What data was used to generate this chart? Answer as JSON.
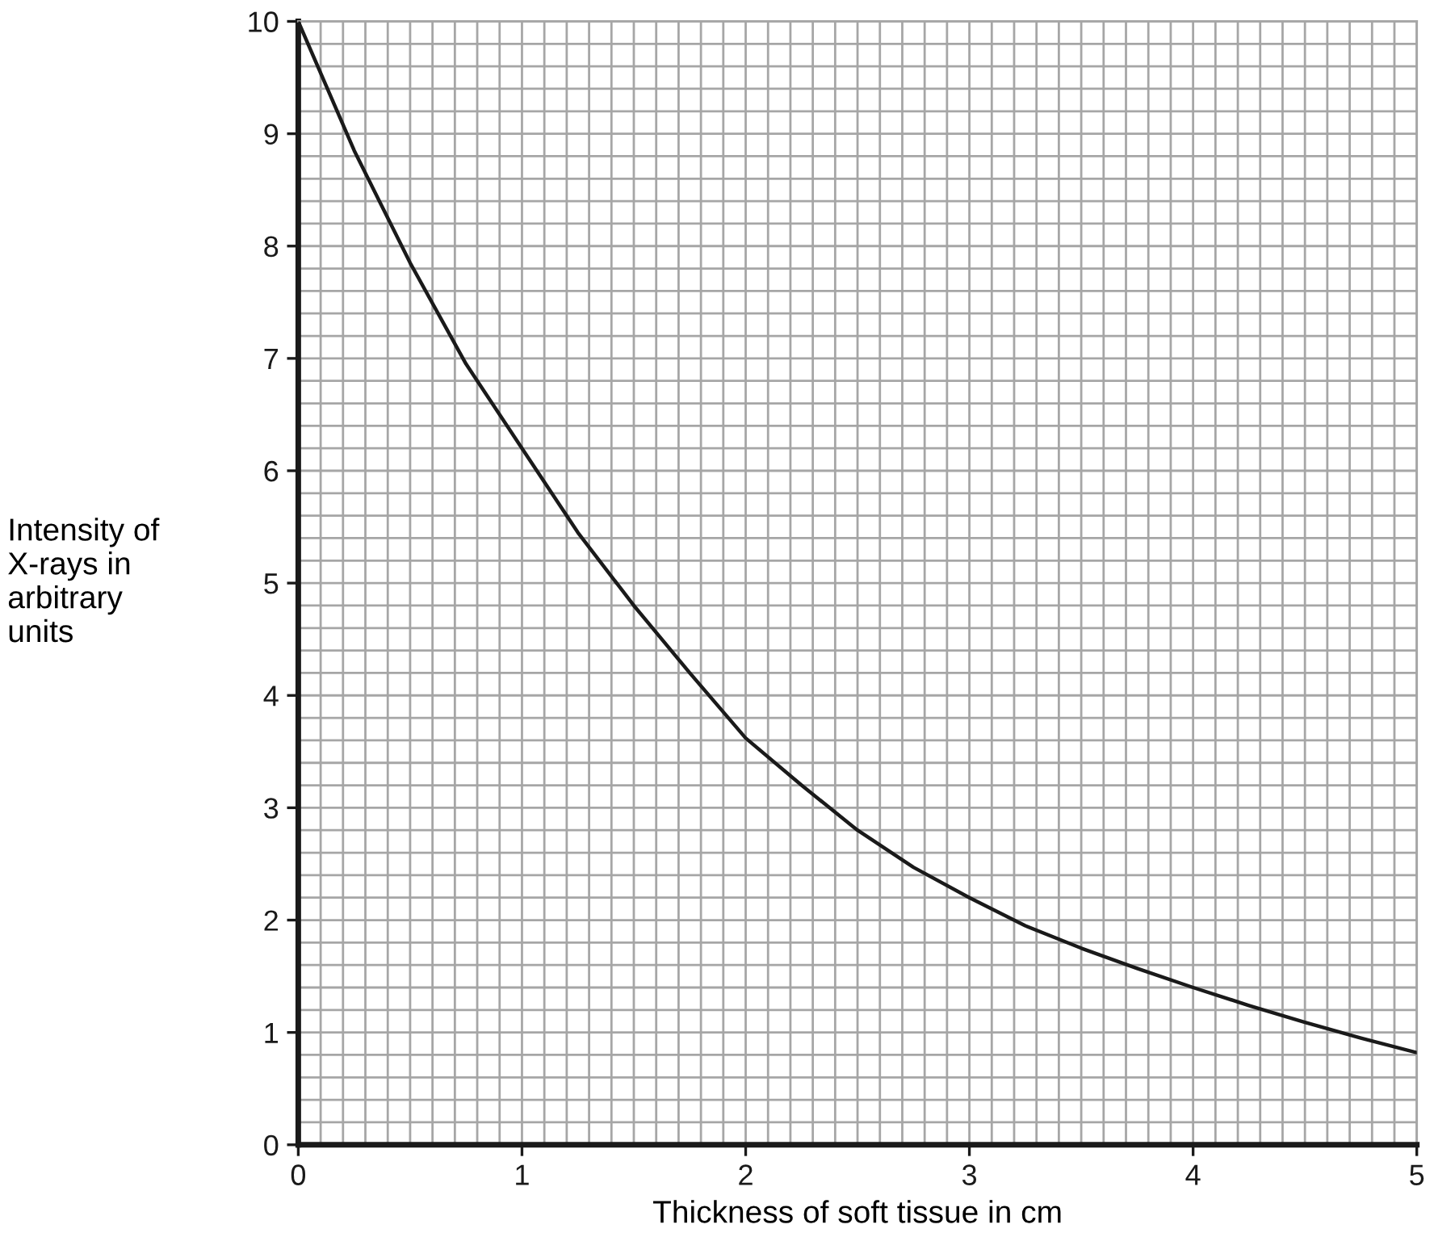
{
  "chart_data": {
    "type": "line",
    "xlabel": "Thickness of soft tissue in cm",
    "ylabel": "Intensity of\nX-rays in\narbitrary\nunits",
    "x": [
      0,
      0.25,
      0.5,
      0.75,
      1,
      1.25,
      1.5,
      1.75,
      2,
      2.25,
      2.5,
      2.75,
      3,
      3.25,
      3.5,
      3.75,
      4,
      4.25,
      4.5,
      4.75,
      5
    ],
    "series": [
      {
        "color": "#1a1a1a",
        "values": [
          10,
          8.85,
          7.85,
          6.95,
          6.2,
          5.45,
          4.8,
          4.2,
          3.62,
          3.2,
          2.8,
          2.47,
          2.2,
          1.95,
          1.75,
          1.57,
          1.4,
          1.24,
          1.09,
          0.95,
          0.82
        ]
      }
    ],
    "xlim": [
      0,
      5
    ],
    "ylim": [
      0,
      10
    ],
    "xticks": [
      0,
      1,
      2,
      3,
      4,
      5
    ],
    "yticks": [
      0,
      1,
      2,
      3,
      4,
      5,
      6,
      7,
      8,
      9,
      10
    ],
    "grid": true,
    "marker": "none",
    "line_style": "solid"
  }
}
